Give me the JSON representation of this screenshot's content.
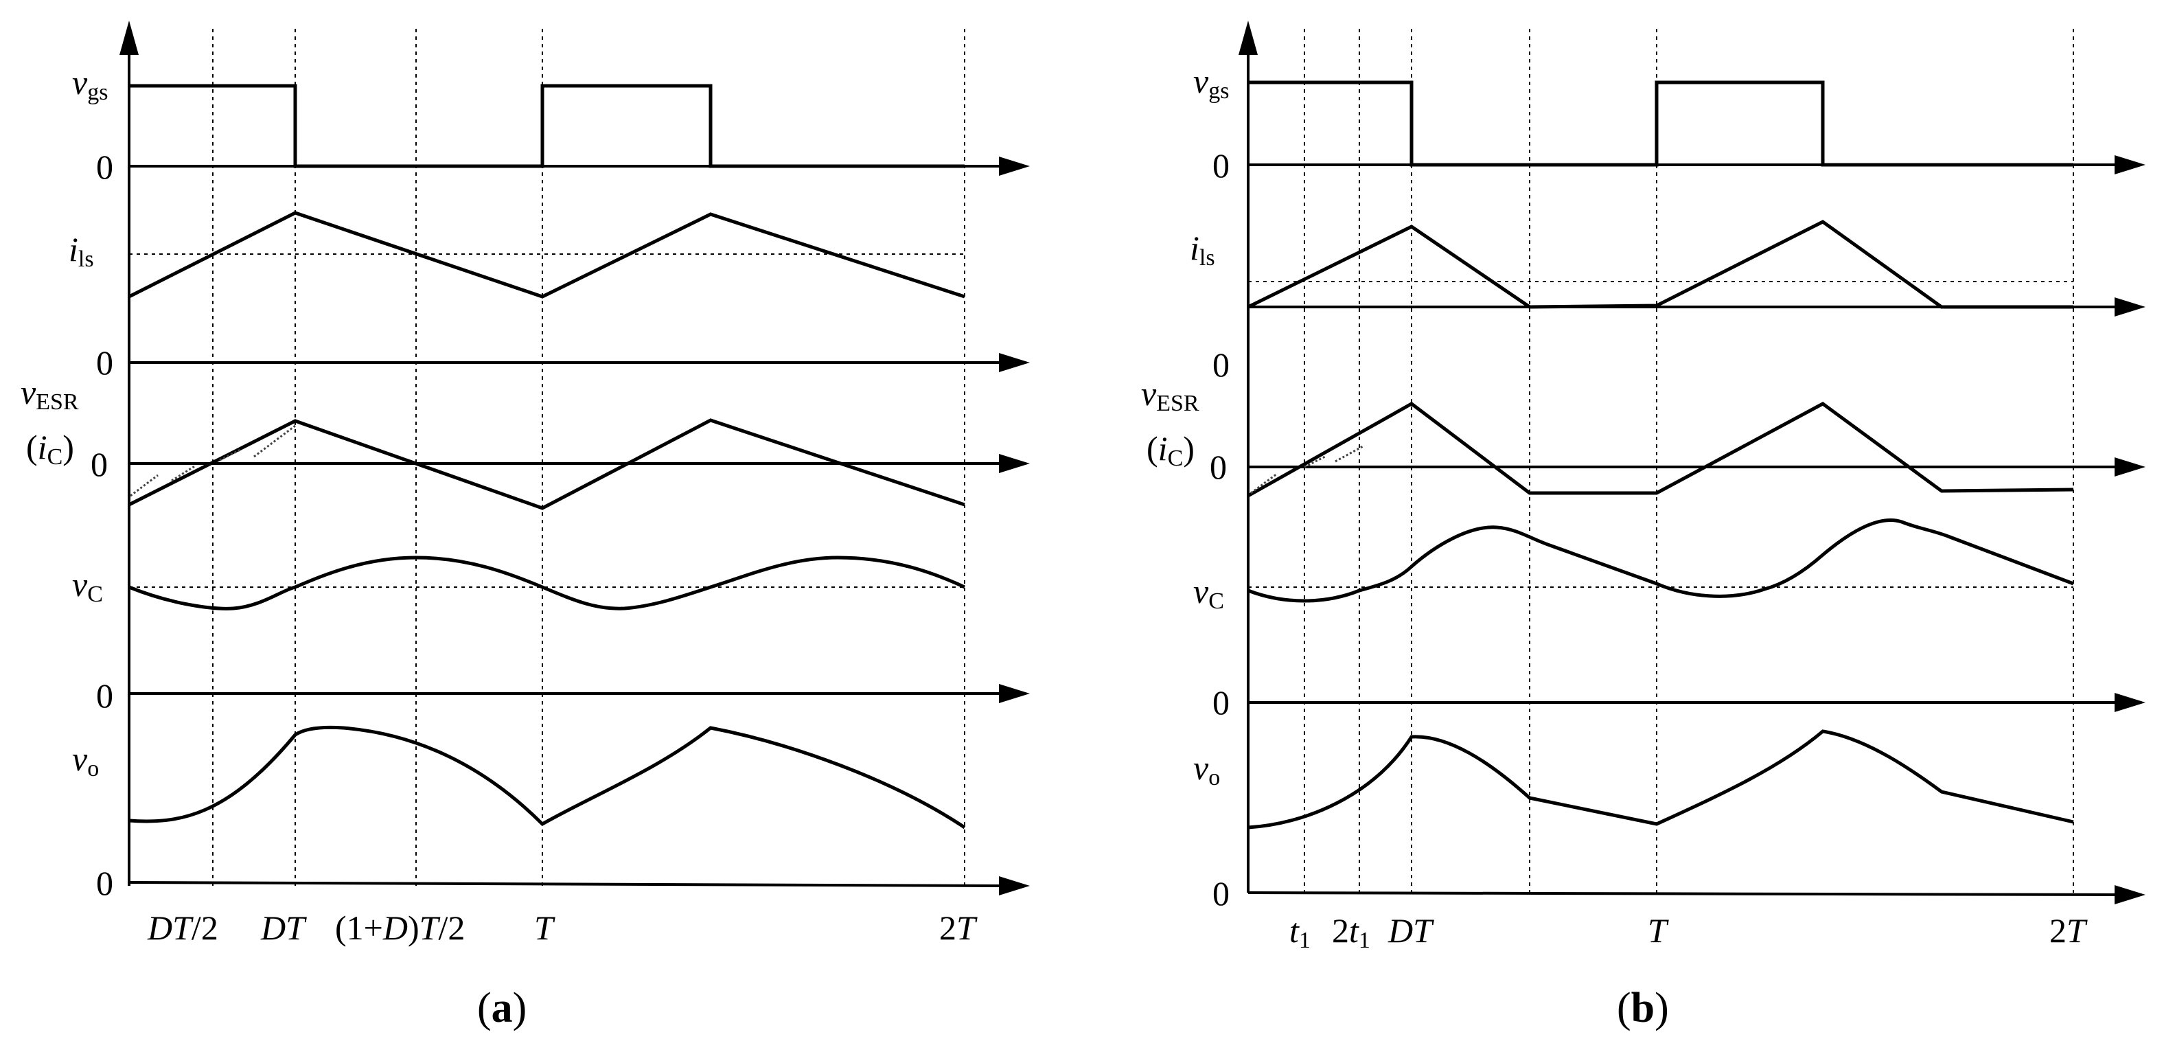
{
  "panel_a": {
    "caption_letter": "a",
    "y_labels": {
      "vgs_main": "v",
      "vgs_sub": "gs",
      "ils_main": "i",
      "ils_sub": "ls",
      "vesr_main": "v",
      "vesr_sub": "ESR",
      "ic_open": "(",
      "ic_main": "i",
      "ic_sub": "C",
      "ic_close": ")",
      "vc_main": "v",
      "vc_sub": "C",
      "vo_main": "v",
      "vo_sub": "o",
      "zero": "0"
    },
    "x_labels": {
      "dt_half_a": "DT",
      "dt_half_b": "/2",
      "dt": "DT",
      "one_plus_d_a": "(1+",
      "one_plus_d_b": "D",
      "one_plus_d_c": ")",
      "one_plus_d_d": "T",
      "one_plus_d_e": "/2",
      "t": "T",
      "two_t_num": "2",
      "two_t_var": "T"
    }
  },
  "panel_b": {
    "caption_letter": "b",
    "y_labels": {
      "vgs_main": "v",
      "vgs_sub": "gs",
      "ils_main": "i",
      "ils_sub": "ls",
      "vesr_main": "v",
      "vesr_sub": "ESR",
      "ic_open": "(",
      "ic_main": "i",
      "ic_sub": "C",
      "ic_close": ")",
      "vc_main": "v",
      "vc_sub": "C",
      "vo_main": "v",
      "vo_sub": "o",
      "zero": "0"
    },
    "x_labels": {
      "t1_var": "t",
      "t1_sub": "1",
      "two_t1_num": "2",
      "two_t1_var": "t",
      "two_t1_sub": "1",
      "dt": "DT",
      "t": "T",
      "two_t_num": "2",
      "two_t_var": "T"
    }
  },
  "caption_open": "(",
  "caption_close": ")"
}
